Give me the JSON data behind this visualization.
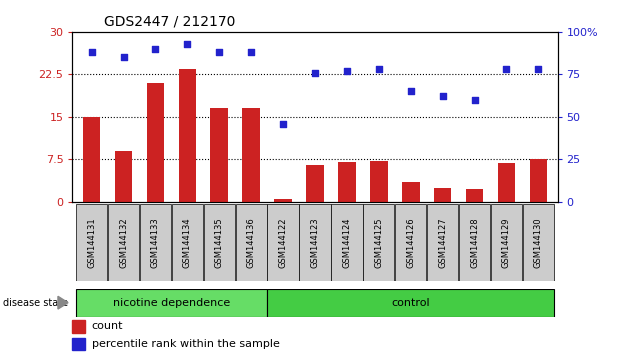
{
  "title": "GDS2447 / 212170",
  "samples": [
    "GSM144131",
    "GSM144132",
    "GSM144133",
    "GSM144134",
    "GSM144135",
    "GSM144136",
    "GSM144122",
    "GSM144123",
    "GSM144124",
    "GSM144125",
    "GSM144126",
    "GSM144127",
    "GSM144128",
    "GSM144129",
    "GSM144130"
  ],
  "count_values": [
    15.0,
    9.0,
    21.0,
    23.5,
    16.5,
    16.5,
    0.5,
    6.5,
    7.0,
    7.2,
    3.5,
    2.5,
    2.2,
    6.8,
    7.5
  ],
  "percentile_values": [
    88,
    85,
    90,
    93,
    88,
    88,
    46,
    76,
    77,
    78,
    65,
    62,
    60,
    78,
    78
  ],
  "left_yticks": [
    0,
    7.5,
    15,
    22.5,
    30
  ],
  "left_yticklabels": [
    "0",
    "7.5",
    "15",
    "22.5",
    "30"
  ],
  "right_yticks": [
    0,
    25,
    50,
    75,
    100
  ],
  "right_yticklabels": [
    "0",
    "25",
    "50",
    "75",
    "100%"
  ],
  "left_ylim": [
    0,
    30
  ],
  "right_ylim": [
    0,
    100
  ],
  "bar_color": "#cc2222",
  "dot_color": "#2222cc",
  "group1_label": "nicotine dependence",
  "group2_label": "control",
  "group1_color": "#66dd66",
  "group2_color": "#44cc44",
  "group1_count": 6,
  "group2_count": 9,
  "disease_state_label": "disease state",
  "legend_count_label": "count",
  "legend_pct_label": "percentile rank within the sample",
  "hlines": [
    7.5,
    15.0,
    22.5
  ],
  "bar_width": 0.55,
  "xlabelbox_color": "#cccccc",
  "spine_color": "#000000"
}
